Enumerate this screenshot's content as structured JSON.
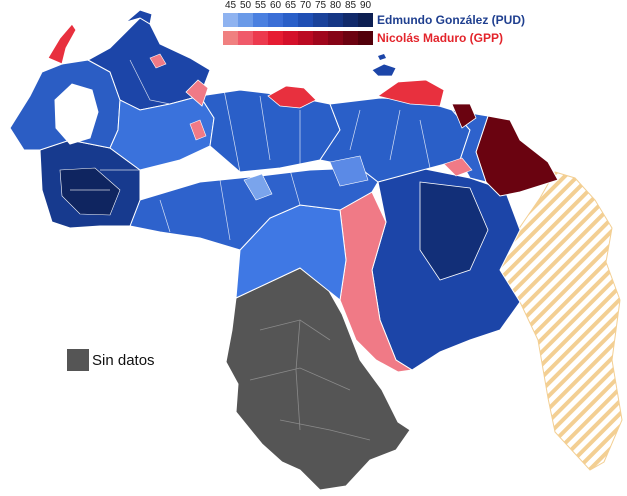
{
  "legend": {
    "scale": [
      "45",
      "50",
      "55",
      "60",
      "65",
      "70",
      "75",
      "80",
      "85",
      "90"
    ],
    "gonzalez": {
      "label": "Edmundo González (PUD)",
      "color": "#1f3f8f",
      "ramp": [
        "#8fb3f0",
        "#6a9ae8",
        "#4a80e0",
        "#3a6ed6",
        "#2a5fc8",
        "#1f4fb4",
        "#1a429a",
        "#153684",
        "#112a6a",
        "#0d1f52"
      ]
    },
    "maduro": {
      "label": "Nicolás Maduro (GPP)",
      "color": "#e3242b",
      "ramp": [
        "#f08080",
        "#f05a6a",
        "#ec3a4e",
        "#e61c32",
        "#d4102a",
        "#bb0a22",
        "#a0061c",
        "#860416",
        "#6c0210",
        "#52000a"
      ]
    },
    "nodata": {
      "label": "Sin datos",
      "color": "#555555"
    }
  },
  "map": {
    "colors": {
      "pud_light": "#5b8ae6",
      "pud_mid": "#2e62cc",
      "pud_dark": "#1c45a8",
      "pud_darkest": "#122f78",
      "gpp_light": "#f07a86",
      "gpp_red": "#e8303e",
      "gpp_dark": "#6a0310",
      "nodata": "#555555",
      "essequibo_hatch": "#f5d9a8",
      "border": "#ffffff"
    }
  }
}
